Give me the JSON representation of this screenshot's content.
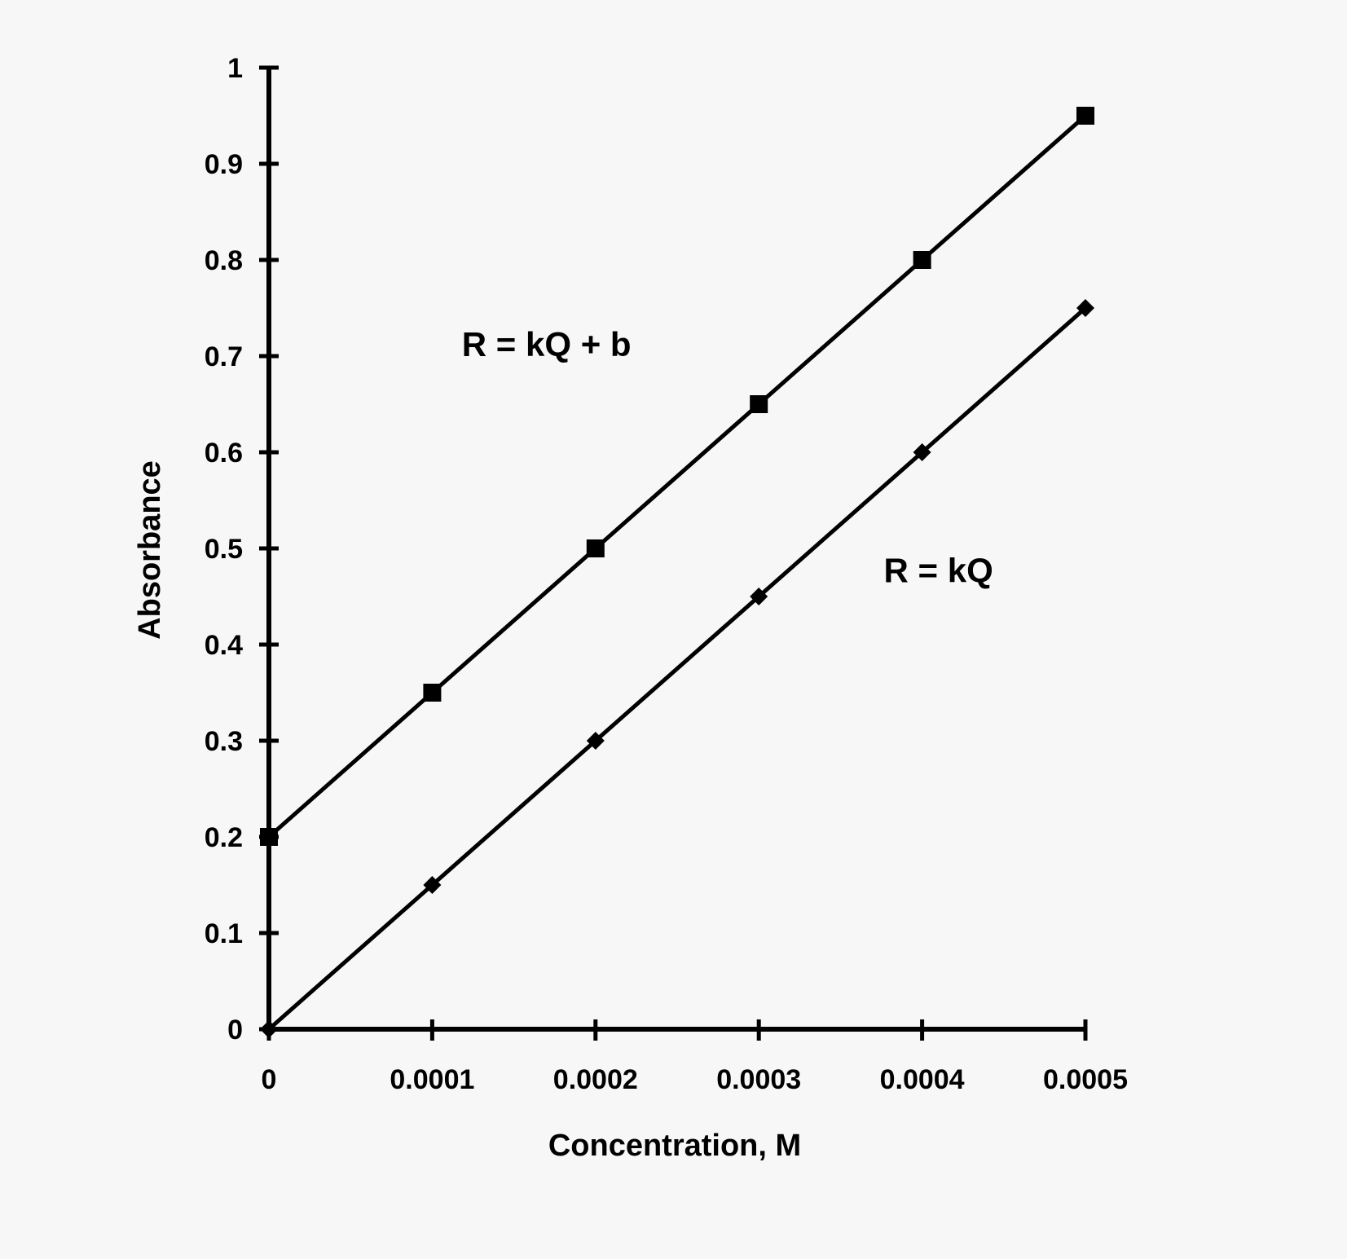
{
  "chart_data": {
    "type": "line",
    "xlabel": "Concentration,  M",
    "ylabel": "Absorbance",
    "xlim": [
      0,
      0.0005
    ],
    "ylim": [
      0,
      1
    ],
    "x_ticks": [
      "0",
      "0.0001",
      "0.0002",
      "0.0003",
      "0.0004",
      "0.0005"
    ],
    "y_ticks": [
      "0",
      "0.1",
      "0.2",
      "0.3",
      "0.4",
      "0.5",
      "0.6",
      "0.7",
      "0.8",
      "0.9",
      "1"
    ],
    "x": [
      0,
      0.0001,
      0.0002,
      0.0003,
      0.0004,
      0.0005
    ],
    "series": [
      {
        "values": [
          0.2,
          0.35,
          0.5,
          0.65,
          0.8,
          0.95
        ],
        "marker": "square",
        "color": "#000000"
      },
      {
        "values": [
          0,
          0.15,
          0.3,
          0.45,
          0.6,
          0.75
        ],
        "marker": "diamond",
        "color": "#000000"
      }
    ],
    "annotations": [
      {
        "text": "R = kQ + b",
        "x": 0.00017,
        "y": 0.7
      },
      {
        "text": "R = kQ",
        "x": 0.00041,
        "y": 0.465
      }
    ],
    "grid": false,
    "legend": "none"
  }
}
